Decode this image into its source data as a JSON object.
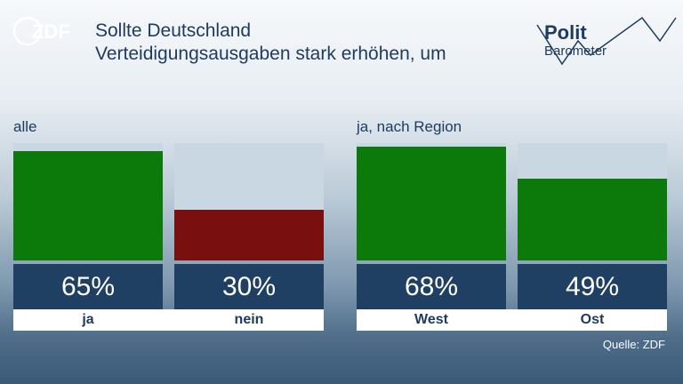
{
  "logo": {
    "text": "ZDF"
  },
  "title": {
    "line1": "Sollte Deutschland",
    "line2": "Verteidigungsausgaben stark erhöhen, um"
  },
  "brand": {
    "line1": "Polit",
    "line2": "Barometer"
  },
  "chart_data": [
    {
      "type": "bar",
      "title": "alle",
      "categories": [
        "ja",
        "nein"
      ],
      "values": [
        65,
        30
      ],
      "value_labels": [
        "65%",
        "30%"
      ],
      "ylim": [
        0,
        100
      ],
      "colors": [
        "#0b7a0b",
        "#7a0f10"
      ]
    },
    {
      "type": "bar",
      "title": "ja, nach Region",
      "categories": [
        "West",
        "Ost"
      ],
      "values": [
        68,
        49
      ],
      "value_labels": [
        "68%",
        "49%"
      ],
      "ylim": [
        0,
        100
      ],
      "colors": [
        "#0b7a0b",
        "#0b7a0b"
      ]
    }
  ],
  "source": "Quelle: ZDF"
}
